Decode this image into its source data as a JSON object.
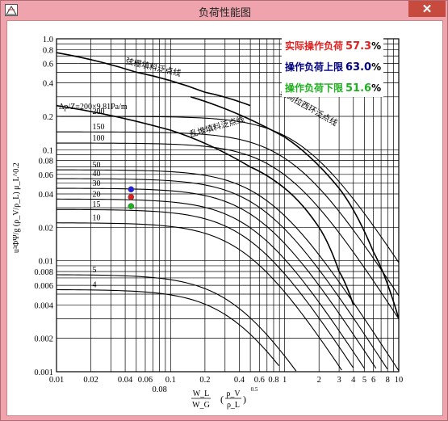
{
  "window": {
    "title": "负荷性能图",
    "close_glyph": "✕"
  },
  "chart_data": {
    "type": "line",
    "title": "",
    "xlabel_num": "W_L",
    "xlabel_den": "W_G",
    "xlabel_frac_num": "ρ_V",
    "xlabel_frac_den": "ρ_L",
    "xlabel_exp": "0.5",
    "ylabel": "u²ΦΨ/g (ρ_V/ρ_L) μ_L^0.2",
    "x_scale": "log",
    "y_scale": "log",
    "xlim": [
      0.01,
      10
    ],
    "ylim": [
      0.001,
      1.0
    ],
    "x_ticks": [
      "0.01",
      "0.02",
      "0.04",
      "0.06",
      "0.1",
      "0.2",
      "0.4",
      "0.6",
      "0.8",
      "1",
      "2",
      "3",
      "4",
      "5",
      "6",
      "8",
      "10"
    ],
    "x_tick_extra": "0.08",
    "y_ticks": [
      "1.0",
      "0.8",
      "0.6",
      "0.4",
      "0.2",
      "0.1",
      "0.08",
      "0.06",
      "0.04",
      "0.02",
      "0.01",
      "0.008",
      "0.006",
      "0.004",
      "0.002",
      "0.001"
    ],
    "flood_lines": [
      {
        "name": "弦栅填料泛点线",
        "points": [
          [
            0.01,
            0.75
          ],
          [
            0.05,
            0.5
          ],
          [
            0.2,
            0.33
          ],
          [
            0.5,
            0.25
          ]
        ]
      },
      {
        "name": "乱堆填料泛点线",
        "points": [
          [
            0.01,
            0.25
          ],
          [
            0.1,
            0.15
          ],
          [
            0.5,
            0.07
          ],
          [
            1,
            0.045
          ],
          [
            2,
            0.02
          ],
          [
            3,
            0.008
          ],
          [
            4,
            0.004
          ]
        ]
      },
      {
        "name": "整砌拉西环泛点线",
        "points": [
          [
            0.15,
            0.3
          ],
          [
            1,
            0.13
          ],
          [
            3,
            0.045
          ],
          [
            6,
            0.012
          ],
          [
            10,
            0.003
          ]
        ]
      }
    ],
    "pressure_drop_label": "Δp/Z=200×9.81Pa/m",
    "pressure_lines": [
      {
        "name": "200",
        "y0": 0.2
      },
      {
        "name": "150",
        "y0": 0.145
      },
      {
        "name": "100",
        "y0": 0.115
      },
      {
        "name": "50",
        "y0": 0.066
      },
      {
        "name": "40",
        "y0": 0.055
      },
      {
        "name": "30",
        "y0": 0.045
      },
      {
        "name": "20",
        "y0": 0.036
      },
      {
        "name": "15",
        "y0": 0.029
      },
      {
        "name": "10",
        "y0": 0.022
      },
      {
        "name": "5",
        "y0": 0.0075
      },
      {
        "name": "4",
        "y0": 0.0055
      }
    ],
    "markers": [
      {
        "name": "操作负荷上限",
        "x": 0.045,
        "y": 0.044,
        "color": "#2020e0"
      },
      {
        "name": "实际操作负荷",
        "x": 0.045,
        "y": 0.0375,
        "color": "#e02020"
      },
      {
        "name": "操作负荷下限",
        "x": 0.045,
        "y": 0.031,
        "color": "#20b020"
      }
    ]
  },
  "legend": {
    "actual": {
      "label": "实际操作负荷",
      "value": "57.3",
      "unit": "%",
      "color": "#e02020"
    },
    "upper": {
      "label": "操作负荷上限",
      "value": "63.0",
      "unit": "%",
      "color": "#000080"
    },
    "lower": {
      "label": "操作负荷下限",
      "value": "51.6",
      "unit": "%",
      "color": "#20b020"
    }
  }
}
